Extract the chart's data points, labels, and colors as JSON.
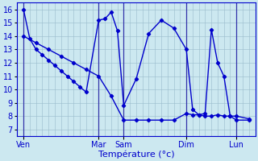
{
  "xlabel": "Température (°c)",
  "bg_color": "#cce8f0",
  "grid_color": "#99bbcc",
  "line_color": "#0000cc",
  "sep_color": "#3333aa",
  "ylim": [
    6.5,
    16.5
  ],
  "yticks": [
    7,
    8,
    9,
    10,
    11,
    12,
    13,
    14,
    15,
    16
  ],
  "xlim": [
    0,
    38
  ],
  "day_labels": [
    "Ven",
    "Mar",
    "Sam",
    "Dim",
    "Lun"
  ],
  "day_x": [
    1,
    13,
    17,
    27,
    35
  ],
  "day_sep_x": [
    1,
    13,
    17,
    27,
    35
  ],
  "s1x": [
    1,
    2,
    3,
    4,
    5,
    6,
    7,
    8,
    9,
    10,
    11,
    13,
    14,
    15,
    16,
    17,
    19,
    21,
    23,
    25,
    27,
    28,
    29,
    30,
    31,
    32,
    33,
    34,
    35,
    37
  ],
  "s1y": [
    16.0,
    13.8,
    13.0,
    12.6,
    12.2,
    11.8,
    11.4,
    11.0,
    10.6,
    10.2,
    9.8,
    15.2,
    15.3,
    15.8,
    14.4,
    8.8,
    10.8,
    14.2,
    15.2,
    14.6,
    13.0,
    8.5,
    8.1,
    8.0,
    8.0,
    8.1,
    8.0,
    8.0,
    8.0,
    7.8
  ],
  "s2x": [
    1,
    3,
    5,
    7,
    9,
    11,
    13,
    15,
    17,
    19,
    21,
    23,
    25,
    27,
    28,
    29,
    30,
    31,
    32,
    33,
    34,
    35,
    37
  ],
  "s2y": [
    14.0,
    13.5,
    13.0,
    12.5,
    12.0,
    11.5,
    11.0,
    9.5,
    7.7,
    7.7,
    7.7,
    7.7,
    7.7,
    8.2,
    8.1,
    8.1,
    8.2,
    14.5,
    12.0,
    11.0,
    8.0,
    7.7,
    7.7
  ]
}
